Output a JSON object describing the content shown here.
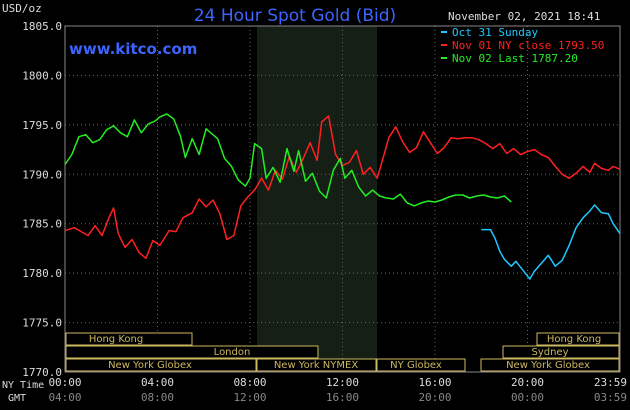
{
  "header": {
    "unit_label": "USD/oz",
    "title": "24 Hour Spot Gold (Bid)",
    "timestamp": "November 02, 2021 18:41",
    "site": "www.kitco.com"
  },
  "legend": [
    {
      "label": "Oct 31 Sunday",
      "color": "#1ec8ff"
    },
    {
      "label": "Nov 01 NY close 1793.50",
      "color": "#ff2020"
    },
    {
      "label": "Nov 02 Last 1787.20",
      "color": "#22ee22"
    }
  ],
  "axis": {
    "y_ticks": [
      "1805.0",
      "1800.0",
      "1795.0",
      "1790.0",
      "1785.0",
      "1780.0",
      "1775.0",
      "1770.0"
    ],
    "x_top_label": "NY Time",
    "x_bottom_label": "GMT",
    "x_ticks_ny": [
      "00:00",
      "04:00",
      "08:00",
      "12:00",
      "16:00",
      "20:00",
      "23:59"
    ],
    "x_ticks_gmt": [
      "04:00",
      "08:00",
      "12:00",
      "16:00",
      "20:00",
      "00:00",
      "03:59"
    ]
  },
  "sessions": {
    "hong_kong_left": "Hong Kong",
    "london": "London",
    "ny_globex_left": "New York Globex",
    "ny_nymex": "New York NYMEX",
    "ny_globex_mid": "NY Globex",
    "hong_kong_right": "Hong Kong",
    "sydney": "Sydney",
    "ny_globex_right": "New York Globex"
  },
  "chart_data": {
    "type": "line",
    "title": "24 Hour Spot Gold (Bid)",
    "ylabel": "USD/oz",
    "x_unit": "hours (NY Time)",
    "ylim": [
      1770,
      1805
    ],
    "xlim": [
      0,
      24
    ],
    "series": [
      {
        "name": "Oct 31 Sunday",
        "color": "#1ec8ff",
        "points": [
          [
            18.0,
            1784.4
          ],
          [
            18.4,
            1784.4
          ],
          [
            18.6,
            1783.5
          ],
          [
            18.8,
            1782.2
          ],
          [
            19.0,
            1781.4
          ],
          [
            19.3,
            1780.7
          ],
          [
            19.5,
            1781.2
          ],
          [
            19.8,
            1780.3
          ],
          [
            20.1,
            1779.4
          ],
          [
            20.3,
            1780.2
          ],
          [
            20.6,
            1781.0
          ],
          [
            20.9,
            1781.8
          ],
          [
            21.2,
            1780.7
          ],
          [
            21.5,
            1781.3
          ],
          [
            21.8,
            1782.8
          ],
          [
            22.1,
            1784.6
          ],
          [
            22.4,
            1785.6
          ],
          [
            22.7,
            1786.3
          ],
          [
            22.9,
            1786.9
          ],
          [
            23.2,
            1786.1
          ],
          [
            23.5,
            1786.0
          ],
          [
            23.7,
            1785.0
          ],
          [
            24.0,
            1784.0
          ]
        ]
      },
      {
        "name": "Nov 01 NY close 1793.50",
        "color": "#ff2020",
        "points": [
          [
            0.0,
            1784.3
          ],
          [
            0.4,
            1784.6
          ],
          [
            0.7,
            1784.2
          ],
          [
            1.0,
            1783.8
          ],
          [
            1.3,
            1784.8
          ],
          [
            1.6,
            1783.8
          ],
          [
            1.9,
            1785.6
          ],
          [
            2.1,
            1786.6
          ],
          [
            2.3,
            1784.0
          ],
          [
            2.6,
            1782.6
          ],
          [
            2.9,
            1783.4
          ],
          [
            3.2,
            1782.1
          ],
          [
            3.5,
            1781.5
          ],
          [
            3.8,
            1783.3
          ],
          [
            4.1,
            1782.8
          ],
          [
            4.5,
            1784.3
          ],
          [
            4.8,
            1784.2
          ],
          [
            5.1,
            1785.6
          ],
          [
            5.5,
            1786.1
          ],
          [
            5.8,
            1787.5
          ],
          [
            6.1,
            1786.7
          ],
          [
            6.4,
            1787.4
          ],
          [
            6.7,
            1786.0
          ],
          [
            7.0,
            1783.4
          ],
          [
            7.3,
            1783.8
          ],
          [
            7.6,
            1786.8
          ],
          [
            7.9,
            1787.7
          ],
          [
            8.2,
            1788.4
          ],
          [
            8.5,
            1789.6
          ],
          [
            8.8,
            1788.4
          ],
          [
            9.1,
            1790.4
          ],
          [
            9.4,
            1789.5
          ],
          [
            9.7,
            1791.8
          ],
          [
            10.0,
            1790.2
          ],
          [
            10.3,
            1791.6
          ],
          [
            10.6,
            1793.2
          ],
          [
            10.9,
            1791.4
          ],
          [
            11.1,
            1795.3
          ],
          [
            11.4,
            1795.9
          ],
          [
            11.7,
            1792.0
          ],
          [
            12.0,
            1790.9
          ],
          [
            12.3,
            1791.2
          ],
          [
            12.6,
            1792.4
          ],
          [
            12.9,
            1790.0
          ],
          [
            13.2,
            1790.7
          ],
          [
            13.5,
            1789.6
          ],
          [
            13.8,
            1792.0
          ],
          [
            14.0,
            1793.7
          ],
          [
            14.3,
            1794.8
          ],
          [
            14.6,
            1793.3
          ],
          [
            14.9,
            1792.2
          ],
          [
            15.2,
            1792.7
          ],
          [
            15.5,
            1794.3
          ],
          [
            15.8,
            1793.2
          ],
          [
            16.1,
            1792.1
          ],
          [
            16.4,
            1792.7
          ],
          [
            16.7,
            1793.7
          ],
          [
            17.0,
            1793.6
          ],
          [
            17.3,
            1793.7
          ],
          [
            17.6,
            1793.7
          ],
          [
            17.9,
            1793.5
          ],
          [
            18.2,
            1793.1
          ],
          [
            18.5,
            1792.6
          ],
          [
            18.8,
            1793.1
          ],
          [
            19.1,
            1792.1
          ],
          [
            19.4,
            1792.6
          ],
          [
            19.7,
            1792.0
          ],
          [
            20.0,
            1792.3
          ],
          [
            20.3,
            1792.5
          ],
          [
            20.6,
            1792.0
          ],
          [
            20.9,
            1791.7
          ],
          [
            21.2,
            1790.8
          ],
          [
            21.5,
            1790.0
          ],
          [
            21.8,
            1789.6
          ],
          [
            22.1,
            1790.1
          ],
          [
            22.4,
            1790.8
          ],
          [
            22.7,
            1790.2
          ],
          [
            22.9,
            1791.1
          ],
          [
            23.2,
            1790.6
          ],
          [
            23.5,
            1790.4
          ],
          [
            23.7,
            1790.8
          ],
          [
            24.0,
            1790.5
          ]
        ]
      },
      {
        "name": "Nov 02 Last 1787.20",
        "color": "#22ee22",
        "points": [
          [
            0.0,
            1791.0
          ],
          [
            0.3,
            1792.0
          ],
          [
            0.6,
            1793.8
          ],
          [
            0.9,
            1794.0
          ],
          [
            1.2,
            1793.2
          ],
          [
            1.5,
            1793.5
          ],
          [
            1.8,
            1794.5
          ],
          [
            2.1,
            1794.9
          ],
          [
            2.4,
            1794.2
          ],
          [
            2.7,
            1793.8
          ],
          [
            3.0,
            1795.5
          ],
          [
            3.3,
            1794.2
          ],
          [
            3.6,
            1795.1
          ],
          [
            3.9,
            1795.4
          ],
          [
            4.1,
            1795.8
          ],
          [
            4.4,
            1796.1
          ],
          [
            4.7,
            1795.6
          ],
          [
            5.0,
            1793.8
          ],
          [
            5.2,
            1791.7
          ],
          [
            5.5,
            1793.6
          ],
          [
            5.8,
            1792.0
          ],
          [
            6.1,
            1794.6
          ],
          [
            6.3,
            1794.2
          ],
          [
            6.6,
            1793.6
          ],
          [
            6.9,
            1791.6
          ],
          [
            7.2,
            1790.8
          ],
          [
            7.5,
            1789.4
          ],
          [
            7.8,
            1788.8
          ],
          [
            8.0,
            1789.6
          ],
          [
            8.2,
            1793.1
          ],
          [
            8.5,
            1792.6
          ],
          [
            8.7,
            1789.6
          ],
          [
            9.0,
            1790.7
          ],
          [
            9.3,
            1789.2
          ],
          [
            9.6,
            1792.6
          ],
          [
            9.9,
            1790.3
          ],
          [
            10.1,
            1792.4
          ],
          [
            10.4,
            1789.3
          ],
          [
            10.7,
            1790.1
          ],
          [
            11.0,
            1788.3
          ],
          [
            11.3,
            1787.6
          ],
          [
            11.6,
            1790.4
          ],
          [
            11.9,
            1791.6
          ],
          [
            12.1,
            1789.6
          ],
          [
            12.4,
            1790.4
          ],
          [
            12.7,
            1788.7
          ],
          [
            13.0,
            1787.8
          ],
          [
            13.3,
            1788.4
          ],
          [
            13.6,
            1787.8
          ],
          [
            13.9,
            1787.6
          ],
          [
            14.2,
            1787.5
          ],
          [
            14.5,
            1788.0
          ],
          [
            14.8,
            1787.1
          ],
          [
            15.1,
            1786.8
          ],
          [
            15.4,
            1787.1
          ],
          [
            15.7,
            1787.3
          ],
          [
            16.0,
            1787.2
          ],
          [
            16.3,
            1787.4
          ],
          [
            16.6,
            1787.7
          ],
          [
            16.9,
            1787.9
          ],
          [
            17.2,
            1787.9
          ],
          [
            17.5,
            1787.6
          ],
          [
            17.8,
            1787.8
          ],
          [
            18.1,
            1787.9
          ],
          [
            18.4,
            1787.7
          ],
          [
            18.7,
            1787.6
          ],
          [
            19.0,
            1787.8
          ],
          [
            19.3,
            1787.2
          ]
        ]
      }
    ]
  }
}
